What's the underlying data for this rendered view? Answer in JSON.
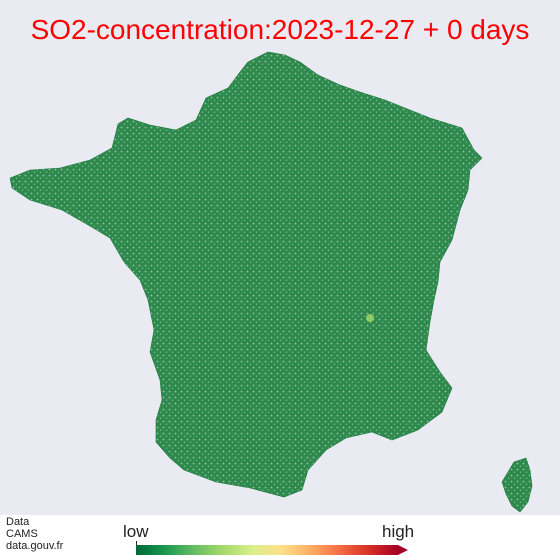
{
  "title": "SO2-concentration:2023-12-27 + 0 days",
  "colors": {
    "title": "#ff0000",
    "background": "#eaeaf2",
    "level_low": "#1a7a3c",
    "level_mid": "#fee08b",
    "level_high": "#a50026"
  },
  "source_lines": [
    "Data",
    "CAMS",
    "data.gouv.fr"
  ],
  "legend": {
    "low_label": "low",
    "high_label": "high",
    "colormap": [
      "#006837",
      "#1a9850",
      "#66bd63",
      "#a6d96a",
      "#d9ef8b",
      "#fee08b",
      "#fdae61",
      "#f46d43",
      "#d73027",
      "#a50026"
    ]
  },
  "map": {
    "region": "France",
    "dominant_level": "low"
  }
}
